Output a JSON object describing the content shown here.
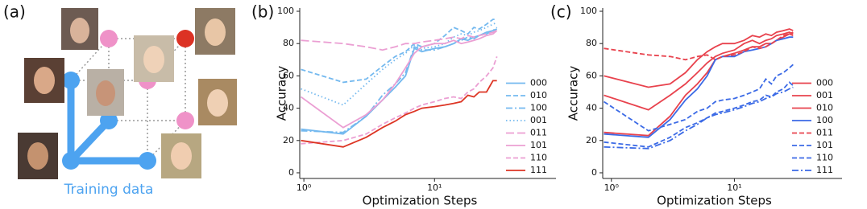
{
  "diagram": {
    "label": "(a)",
    "caption": "Training data"
  },
  "chart_data": [
    {
      "type": "line",
      "label": "(b)",
      "ylabel": "Accuracy",
      "xlabel": "Optimization Steps",
      "xscale": "log",
      "xlim": [
        0.93,
        85
      ],
      "xticks": [
        {
          "value": 1,
          "label": "10⁰"
        },
        {
          "value": 10,
          "label": "10¹"
        }
      ],
      "ylim": [
        -3.5,
        102
      ],
      "yticks": [
        0,
        20,
        40,
        60,
        80,
        100
      ],
      "legend": "lower right",
      "x": [
        0.95,
        2,
        3,
        4,
        5,
        6,
        7,
        8,
        10,
        12,
        14,
        16,
        18,
        20,
        22,
        25,
        28,
        30
      ],
      "series": [
        {
          "name": "000",
          "color": "#74b9ef",
          "dash": "solid",
          "values": [
            27,
            24,
            35,
            45,
            53,
            60,
            77,
            75,
            77,
            78,
            80,
            83,
            82,
            84,
            85,
            87,
            88,
            89
          ]
        },
        {
          "name": "010",
          "color": "#74b9ef",
          "dash": "dashed",
          "values": [
            64,
            56,
            58,
            66,
            72,
            75,
            80,
            78,
            80,
            85,
            90,
            88,
            86,
            90,
            89,
            92,
            95,
            95
          ]
        },
        {
          "name": "100",
          "color": "#74b9ef",
          "dash": "dashdot",
          "values": [
            26,
            25,
            35,
            48,
            55,
            62,
            78,
            76,
            76,
            78,
            80,
            82,
            84,
            83,
            85,
            86,
            88,
            90
          ]
        },
        {
          "name": "001",
          "color": "#74b9ef",
          "dash": "dotted",
          "values": [
            52,
            42,
            55,
            64,
            70,
            74,
            79,
            77,
            78,
            80,
            84,
            86,
            85,
            87,
            88,
            90,
            92,
            93
          ]
        },
        {
          "name": "011",
          "color": "#eb9fd3",
          "dash": "longdash",
          "values": [
            82,
            80,
            78,
            76,
            78,
            80,
            80,
            81,
            82,
            83,
            84,
            83,
            85,
            84,
            85,
            86,
            87,
            88
          ]
        },
        {
          "name": "101",
          "color": "#eb9fd3",
          "dash": "solid",
          "values": [
            47,
            28,
            36,
            45,
            55,
            65,
            74,
            78,
            80,
            80,
            82,
            80,
            81,
            82,
            83,
            85,
            86,
            88
          ]
        },
        {
          "name": "110",
          "color": "#eb9fd3",
          "dash": "dashed",
          "values": [
            18,
            20,
            24,
            30,
            34,
            37,
            40,
            42,
            44,
            46,
            47,
            46,
            50,
            52,
            56,
            60,
            65,
            72
          ]
        },
        {
          "name": "111",
          "color": "#dd3524",
          "dash": "solid",
          "values": [
            20,
            16,
            22,
            28,
            32,
            36,
            38,
            40,
            41,
            42,
            43,
            44,
            48,
            47,
            50,
            50,
            57,
            57
          ]
        }
      ]
    },
    {
      "type": "line",
      "label": "(c)",
      "ylabel": "Accuracy",
      "xlabel": "Optimization Steps",
      "xscale": "log",
      "xlim": [
        0.85,
        75
      ],
      "xticks": [
        {
          "value": 1,
          "label": "10⁰"
        },
        {
          "value": 10,
          "label": "10¹"
        }
      ],
      "ylim": [
        -3.5,
        102
      ],
      "yticks": [
        0,
        20,
        40,
        60,
        80,
        100
      ],
      "legend": "lower right",
      "x": [
        0.87,
        2,
        3,
        4,
        5,
        6,
        7,
        8,
        10,
        12,
        14,
        16,
        18,
        20,
        22,
        25,
        28,
        30
      ],
      "series": [
        {
          "name": "000",
          "color": "#e8424d",
          "dash": "solid",
          "values": [
            60,
            53,
            55,
            62,
            70,
            75,
            78,
            80,
            80,
            82,
            85,
            84,
            86,
            85,
            87,
            88,
            89,
            88
          ]
        },
        {
          "name": "001",
          "color": "#e8424d",
          "dash": "solid",
          "values": [
            48,
            39,
            48,
            55,
            62,
            68,
            72,
            74,
            76,
            80,
            82,
            80,
            82,
            83,
            85,
            86,
            87,
            86
          ]
        },
        {
          "name": "010",
          "color": "#e8424d",
          "dash": "solid",
          "values": [
            25,
            23,
            35,
            48,
            55,
            62,
            70,
            72,
            74,
            76,
            78,
            78,
            80,
            80,
            82,
            84,
            86,
            85
          ]
        },
        {
          "name": "100",
          "color": "#3b6ae6",
          "dash": "solid",
          "values": [
            24,
            22,
            33,
            45,
            52,
            60,
            70,
            72,
            72,
            75,
            76,
            77,
            78,
            80,
            82,
            83,
            84,
            84
          ]
        },
        {
          "name": "011",
          "color": "#e8424d",
          "dash": "dashed",
          "values": [
            77,
            73,
            72,
            70,
            72,
            73,
            70,
            72,
            73,
            75,
            78,
            77,
            78,
            80,
            82,
            85,
            86,
            87
          ]
        },
        {
          "name": "101",
          "color": "#3b6ae6",
          "dash": "dashed",
          "values": [
            44,
            26,
            30,
            33,
            38,
            40,
            44,
            45,
            46,
            48,
            50,
            52,
            58,
            55,
            60,
            62,
            65,
            67
          ]
        },
        {
          "name": "110",
          "color": "#3b6ae6",
          "dash": "dashed",
          "values": [
            19,
            16,
            22,
            28,
            31,
            34,
            37,
            38,
            40,
            42,
            44,
            45,
            48,
            47,
            50,
            52,
            56,
            54
          ]
        },
        {
          "name": "111",
          "color": "#3b6ae6",
          "dash": "dashdot",
          "values": [
            16,
            15,
            20,
            26,
            30,
            34,
            36,
            37,
            39,
            41,
            43,
            44,
            46,
            47,
            49,
            50,
            52,
            53
          ]
        }
      ]
    }
  ]
}
